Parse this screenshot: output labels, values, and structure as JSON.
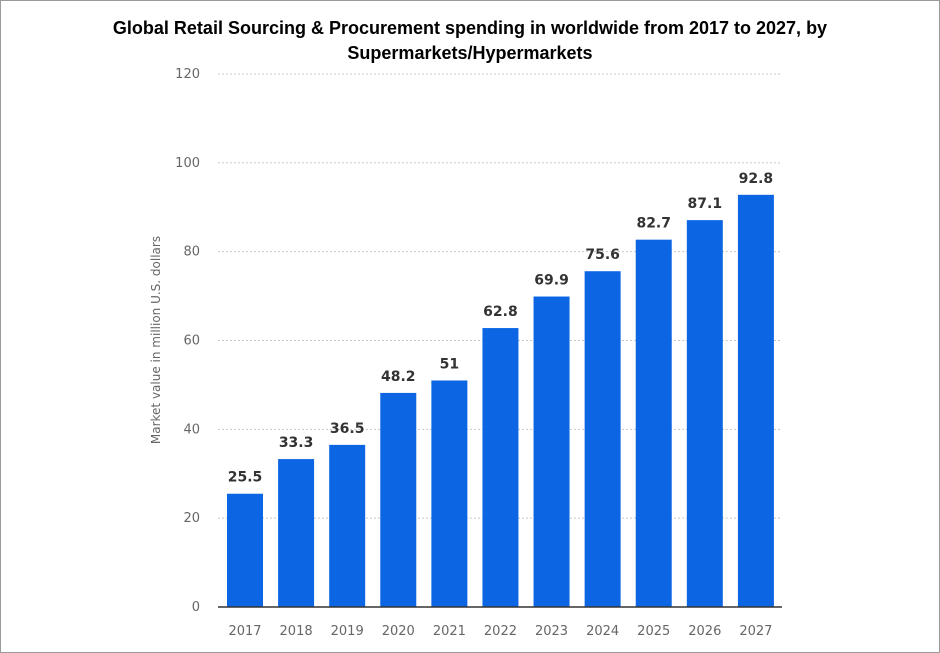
{
  "chart_data": {
    "type": "bar",
    "title": "Global Retail Sourcing & Procurement spending in worldwide from 2017 to 2027, by",
    "subtitle": "Supermarkets/Hypermarkets",
    "xlabel": "",
    "ylabel": "Market value in million U.S. dollars",
    "categories": [
      "2017",
      "2018",
      "2019",
      "2020",
      "2021",
      "2022",
      "2023",
      "2024",
      "2025",
      "2026",
      "2027"
    ],
    "values": [
      25.5,
      33.3,
      36.5,
      48.2,
      51,
      62.8,
      69.9,
      75.6,
      82.7,
      87.1,
      92.8
    ],
    "value_labels": [
      "25.5",
      "33.3",
      "36.5",
      "48.2",
      "51",
      "62.8",
      "69.9",
      "75.6",
      "82.7",
      "87.1",
      "92.8"
    ],
    "ylim": [
      0,
      120
    ],
    "yticks": [
      "0",
      "20",
      "40",
      "60",
      "80",
      "100",
      "120"
    ],
    "grid": true,
    "bar_color": "#0c66e4",
    "grid_color": "#c8c8c8"
  }
}
